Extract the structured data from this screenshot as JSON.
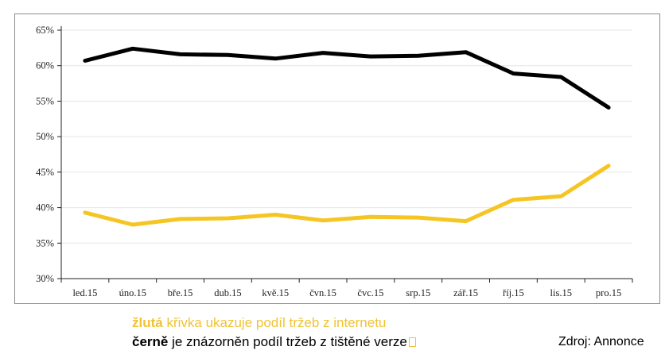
{
  "chart_data": {
    "type": "line",
    "categories": [
      "led.15",
      "úno.15",
      "bře.15",
      "dub.15",
      "kvě.15",
      "čvn.15",
      "čvc.15",
      "srp.15",
      "zář.15",
      "říj.15",
      "lis.15",
      "pro.15"
    ],
    "series": [
      {
        "color": "#000000",
        "values": [
          60.7,
          62.4,
          61.6,
          61.5,
          61.0,
          61.8,
          61.3,
          61.4,
          61.9,
          58.9,
          58.4,
          54.1
        ]
      },
      {
        "color": "#f5c623",
        "values": [
          39.3,
          37.6,
          38.4,
          38.5,
          39.0,
          38.2,
          38.7,
          38.6,
          38.1,
          41.1,
          41.6,
          45.9
        ]
      }
    ],
    "yticks": [
      "30%",
      "35%",
      "40%",
      "45%",
      "50%",
      "55%",
      "60%",
      "65%"
    ],
    "ylim": [
      30,
      65
    ],
    "grid": true,
    "legend": "none"
  },
  "captions": {
    "line1_key": "žlutá",
    "line1_rest": " křivka ukazuje podíl tržeb z internetu",
    "line2_key": "černě",
    "line2_rest": " je znázorněn podíl tržeb z tištěné verze",
    "source": "Zdroj: Annonce"
  }
}
